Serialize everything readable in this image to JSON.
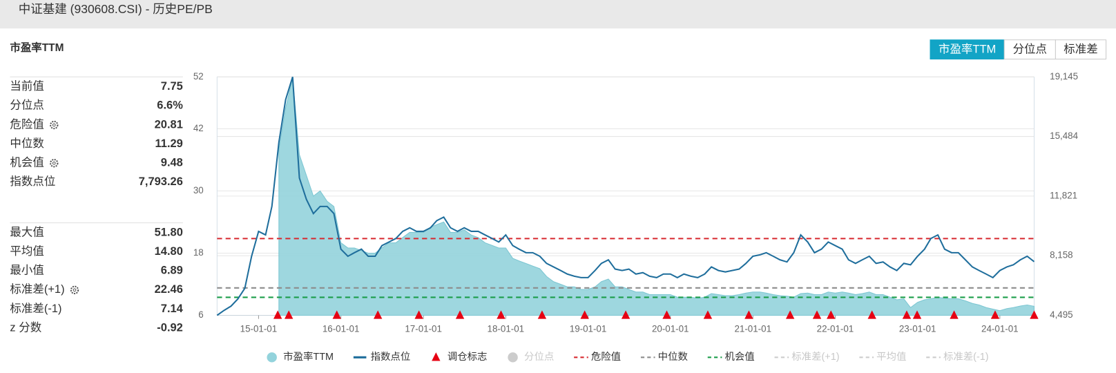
{
  "header": {
    "title": "中证基建 (930608.CSI) - 历史PE/PB"
  },
  "tabs": {
    "items": [
      "市盈率TTM",
      "分位点",
      "标准差"
    ],
    "active": 0
  },
  "panel": {
    "title": "市盈率TTM",
    "groups": [
      {
        "rows": [
          {
            "label": "当前值",
            "value": "7.75"
          },
          {
            "label": "分位点",
            "value": "6.6%"
          },
          {
            "label": "危险值",
            "value": "20.81",
            "has_settings": true
          },
          {
            "label": "中位数",
            "value": "11.29"
          },
          {
            "label": "机会值",
            "value": "9.48",
            "has_settings": true
          },
          {
            "label": "指数点位",
            "value": "7,793.26"
          }
        ]
      },
      {
        "rows": [
          {
            "label": "最大值",
            "value": "51.80"
          },
          {
            "label": "平均值",
            "value": "14.80"
          },
          {
            "label": "最小值",
            "value": "6.89"
          },
          {
            "label": "标准差(+1)",
            "value": "22.46",
            "has_settings": true
          },
          {
            "label": "标准差(-1)",
            "value": "7.14"
          },
          {
            "label": "z 分数",
            "value": "-0.92"
          }
        ]
      }
    ]
  },
  "chart_data": {
    "type": "area-line",
    "x": [
      "2014-07-01",
      "2014-08-01",
      "2014-09-01",
      "2014-10-01",
      "2014-11-01",
      "2014-12-01",
      "2015-01-01",
      "2015-02-01",
      "2015-03-01",
      "2015-04-01",
      "2015-05-01",
      "2015-06-01",
      "2015-07-01",
      "2015-08-01",
      "2015-09-01",
      "2015-10-01",
      "2015-11-01",
      "2015-12-01",
      "2016-01-01",
      "2016-02-01",
      "2016-03-01",
      "2016-04-01",
      "2016-05-01",
      "2016-06-01",
      "2016-07-01",
      "2016-08-01",
      "2016-09-01",
      "2016-10-01",
      "2016-11-01",
      "2016-12-01",
      "2017-01-01",
      "2017-02-01",
      "2017-03-01",
      "2017-04-01",
      "2017-05-01",
      "2017-06-01",
      "2017-07-01",
      "2017-08-01",
      "2017-09-01",
      "2017-10-01",
      "2017-11-01",
      "2017-12-01",
      "2018-01-01",
      "2018-02-01",
      "2018-03-01",
      "2018-04-01",
      "2018-05-01",
      "2018-06-01",
      "2018-07-01",
      "2018-08-01",
      "2018-09-01",
      "2018-10-01",
      "2018-11-01",
      "2018-12-01",
      "2019-01-01",
      "2019-02-01",
      "2019-03-01",
      "2019-04-01",
      "2019-05-01",
      "2019-06-01",
      "2019-07-01",
      "2019-08-01",
      "2019-09-01",
      "2019-10-01",
      "2019-11-01",
      "2019-12-01",
      "2020-01-01",
      "2020-02-01",
      "2020-03-01",
      "2020-04-01",
      "2020-05-01",
      "2020-06-01",
      "2020-07-01",
      "2020-08-01",
      "2020-09-01",
      "2020-10-01",
      "2020-11-01",
      "2020-12-01",
      "2021-01-01",
      "2021-02-01",
      "2021-03-01",
      "2021-04-01",
      "2021-05-01",
      "2021-06-01",
      "2021-07-01",
      "2021-08-01",
      "2021-09-01",
      "2021-10-01",
      "2021-11-01",
      "2021-12-01",
      "2022-01-01",
      "2022-02-01",
      "2022-03-01",
      "2022-04-01",
      "2022-05-01",
      "2022-06-01",
      "2022-07-01",
      "2022-08-01",
      "2022-09-01",
      "2022-10-01",
      "2022-11-01",
      "2022-12-01",
      "2023-01-01",
      "2023-02-01",
      "2023-03-01",
      "2023-04-01",
      "2023-05-01",
      "2023-06-01",
      "2023-07-01",
      "2023-08-01",
      "2023-09-01",
      "2023-10-01",
      "2023-11-01",
      "2023-12-01",
      "2024-01-01",
      "2024-02-01",
      "2024-03-01",
      "2024-04-01",
      "2024-05-01",
      "2024-06-01"
    ],
    "series": [
      {
        "name": "市盈率TTM",
        "kind": "area",
        "color": "#93d3dc",
        "axis": "y",
        "values": [
          null,
          null,
          null,
          null,
          null,
          null,
          null,
          null,
          null,
          38,
          46,
          51.8,
          37,
          33,
          29,
          30,
          28,
          27,
          20,
          19,
          19,
          18.5,
          18,
          18,
          19,
          20,
          20,
          21,
          22,
          22,
          22,
          23,
          23.5,
          24,
          22,
          22,
          22.5,
          21.5,
          21,
          20,
          19.5,
          19,
          19,
          17,
          16.5,
          16,
          15.5,
          15,
          13.5,
          12.5,
          12,
          11.5,
          11.5,
          11,
          11,
          11.5,
          12.5,
          13,
          11.5,
          11.5,
          11,
          10.5,
          10.5,
          10,
          10,
          10,
          10,
          9.5,
          9.5,
          9.5,
          9.3,
          9.5,
          10.2,
          10,
          9.8,
          9.8,
          10,
          10.3,
          10.5,
          10.5,
          10.3,
          10,
          9.8,
          9.7,
          9.5,
          10.2,
          10.3,
          10,
          10,
          10.5,
          10.3,
          10.5,
          10.3,
          10,
          10.2,
          10.5,
          10,
          10,
          9.5,
          9,
          9.2,
          7.5,
          8.5,
          9,
          9.2,
          9.5,
          9.3,
          9.2,
          9.2,
          8.8,
          8.3,
          8,
          7.5,
          7.2,
          6.9,
          7.3,
          7.5,
          7.8,
          8,
          7.75
        ]
      },
      {
        "name": "指数点位",
        "kind": "line",
        "color": "#1f6e9c",
        "axis": "y2",
        "values": [
          4495,
          4801,
          5063,
          5501,
          6157,
          8125,
          9655,
          9436,
          11186,
          15121,
          17745,
          19145,
          12935,
          11623,
          10748,
          11186,
          11186,
          10748,
          8562,
          8125,
          8343,
          8562,
          8125,
          8125,
          8781,
          8999,
          9218,
          9655,
          9874,
          9655,
          9655,
          9874,
          10311,
          10530,
          9874,
          9655,
          9874,
          9655,
          9655,
          9436,
          9218,
          8999,
          9436,
          8781,
          8562,
          8343,
          8343,
          8125,
          7687,
          7469,
          7250,
          7031,
          6900,
          6813,
          6813,
          7250,
          7687,
          7906,
          7337,
          7250,
          7337,
          7031,
          7119,
          6900,
          6813,
          7031,
          7031,
          6813,
          7031,
          6900,
          6813,
          7031,
          7469,
          7250,
          7163,
          7250,
          7337,
          7687,
          8125,
          8212,
          8343,
          8125,
          7906,
          7775,
          8343,
          9436,
          8999,
          8343,
          8562,
          8999,
          8781,
          8562,
          7906,
          7687,
          7906,
          8125,
          7687,
          7775,
          7469,
          7250,
          7687,
          7600,
          8125,
          8562,
          9218,
          9436,
          8562,
          8343,
          8343,
          7906,
          7469,
          7250,
          7031,
          6813,
          7250,
          7469,
          7600,
          7906,
          8125,
          7793
        ]
      }
    ],
    "rebalance": {
      "name": "调仓标志",
      "color": "#e60012",
      "dates": [
        "2015-03-27",
        "2015-05-15",
        "2015-12-14",
        "2016-06-13",
        "2016-12-12",
        "2017-06-12",
        "2017-12-11",
        "2018-06-11",
        "2018-12-17",
        "2019-06-17",
        "2019-12-16",
        "2020-06-15",
        "2020-12-14",
        "2021-06-15",
        "2021-10-12",
        "2021-12-13",
        "2022-06-13",
        "2022-11-14",
        "2022-12-30",
        "2023-06-12",
        "2023-12-11",
        "2024-06-01"
      ]
    },
    "percentile": {
      "name": "分位点",
      "visible": false
    },
    "reference_lines": [
      {
        "name": "危险值",
        "value": 20.81,
        "color": "#d7282f",
        "visible": true
      },
      {
        "name": "中位数",
        "value": 11.29,
        "color": "#8c8c8c",
        "visible": true
      },
      {
        "name": "机会值",
        "value": 9.48,
        "color": "#1a9d49",
        "visible": true
      },
      {
        "name": "标准差(+1)",
        "value": 22.46,
        "color": "#cccccc",
        "visible": false
      },
      {
        "name": "平均值",
        "value": 14.8,
        "color": "#cccccc",
        "visible": false
      },
      {
        "name": "标准差(-1)",
        "value": 7.14,
        "color": "#cccccc",
        "visible": false
      }
    ],
    "xlim": [
      "2014-07-01",
      "2024-06-01"
    ],
    "xticks": [
      {
        "value": "2015-01-01",
        "label": "15-01-01"
      },
      {
        "value": "2016-01-01",
        "label": "16-01-01"
      },
      {
        "value": "2017-01-01",
        "label": "17-01-01"
      },
      {
        "value": "2018-01-01",
        "label": "18-01-01"
      },
      {
        "value": "2019-01-01",
        "label": "19-01-01"
      },
      {
        "value": "2020-01-01",
        "label": "20-01-01"
      },
      {
        "value": "2021-01-01",
        "label": "21-01-01"
      },
      {
        "value": "2022-01-01",
        "label": "22-01-01"
      },
      {
        "value": "2023-01-01",
        "label": "23-01-01"
      },
      {
        "value": "2024-01-01",
        "label": "24-01-01"
      }
    ],
    "ylim": [
      6,
      52
    ],
    "yticks": [
      6,
      18,
      30,
      42,
      52
    ],
    "y2lim": [
      4495,
      19145
    ],
    "y2ticks": [
      {
        "value": 4495,
        "label": "4,495"
      },
      {
        "value": 8158,
        "label": "8,158"
      },
      {
        "value": 11821,
        "label": "11,821"
      },
      {
        "value": 15484,
        "label": "15,484"
      },
      {
        "value": 19145,
        "label": "19,145"
      }
    ],
    "grid": true
  }
}
